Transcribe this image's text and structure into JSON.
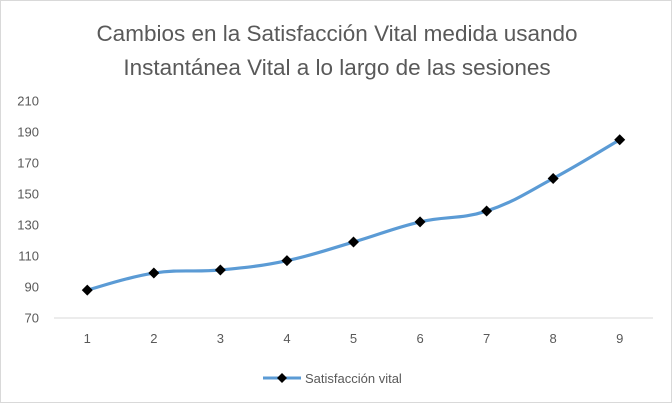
{
  "chart_data": {
    "type": "line",
    "title_lines": [
      "Cambios en la Satisfacción Vital medida usando",
      "Instantánea Vital a lo largo de las sesiones"
    ],
    "xlabel": "",
    "ylabel": "",
    "x": [
      1,
      2,
      3,
      4,
      5,
      6,
      7,
      8,
      9
    ],
    "series": [
      {
        "name": "Satisfacción vital",
        "values": [
          88,
          99,
          101,
          107,
          119,
          132,
          139,
          160,
          185
        ],
        "color": "#5b9bd5",
        "marker": "diamond",
        "marker_color": "#000000"
      }
    ],
    "ylim": [
      70,
      210
    ],
    "yticks": [
      70,
      90,
      110,
      130,
      150,
      170,
      190,
      210
    ],
    "grid": false,
    "legend_position": "bottom"
  }
}
